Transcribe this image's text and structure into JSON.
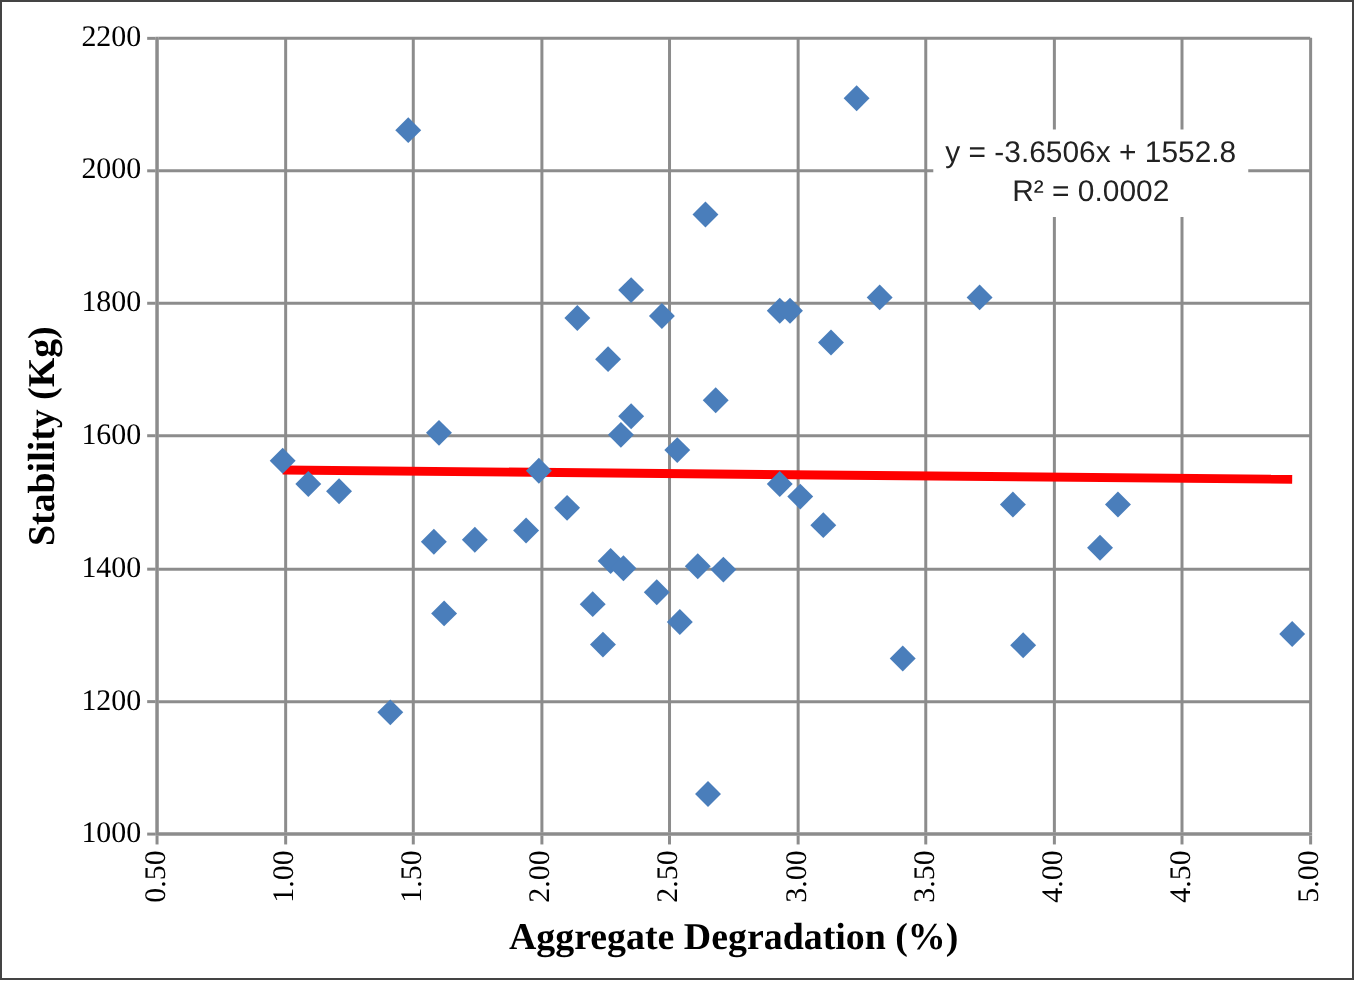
{
  "chart_data": {
    "type": "scatter",
    "xlabel": "Aggregate Degradation (%)",
    "ylabel": "Stability (Kg)",
    "xlim": [
      0.5,
      5
    ],
    "xticks": [
      {
        "value": 0.5,
        "label": "0.50"
      },
      {
        "value": 1,
        "label": "1.00"
      },
      {
        "value": 1.5,
        "label": "1.50"
      },
      {
        "value": 2,
        "label": "2.00"
      },
      {
        "value": 2.5,
        "label": "2.50"
      },
      {
        "value": 3,
        "label": "3.00"
      },
      {
        "value": 3.5,
        "label": "3.50"
      },
      {
        "value": 4,
        "label": "4.00"
      },
      {
        "value": 4.5,
        "label": "4.50"
      },
      {
        "value": 5,
        "label": "5.00"
      }
    ],
    "ylim": [
      1000,
      2200
    ],
    "yticks": [
      1000,
      1200,
      1400,
      1600,
      1800,
      2000,
      2200
    ],
    "grid": true,
    "marker": "diamond",
    "legend": false,
    "annotations": [
      "y = -3.6506x + 1552.8",
      "R² = 0.0002"
    ],
    "series": [
      {
        "color": "#4a7ebb",
        "x": [
          0.99,
          1.09,
          1.21,
          1.48,
          1.6,
          1.58,
          1.74,
          1.62,
          1.41,
          1.94,
          1.99,
          2.1,
          2.14,
          2.26,
          2.35,
          2.47,
          2.35,
          2.31,
          2.53,
          2.68,
          2.64,
          2.27,
          2.32,
          2.2,
          2.24,
          2.45,
          2.54,
          2.61,
          2.71,
          2.65,
          3.23,
          2.93,
          2.97,
          3.32,
          3.13,
          3.71,
          2.93,
          3.01,
          3.1,
          3.84,
          4.25,
          4.18,
          3.41,
          3.88,
          4.93
        ],
        "values": [
          1563,
          1528,
          1517,
          2061,
          1605,
          1441,
          1444,
          1333,
          1184,
          1458,
          1548,
          1492,
          1778,
          1716,
          1820,
          1781,
          1630,
          1602,
          1579,
          1654,
          1934,
          1412,
          1401,
          1347,
          1286,
          1365,
          1320,
          1404,
          1399,
          1061,
          2109,
          1789,
          1789,
          1809,
          1741,
          1809,
          1528,
          1509,
          1466,
          1497,
          1497,
          1432,
          1265,
          1285,
          1302
        ]
      },
      {
        "type": "line",
        "color": "#ff0000",
        "marker": "none",
        "x": [
          0.99,
          4.93
        ],
        "values": [
          1549,
          1535
        ]
      }
    ]
  }
}
